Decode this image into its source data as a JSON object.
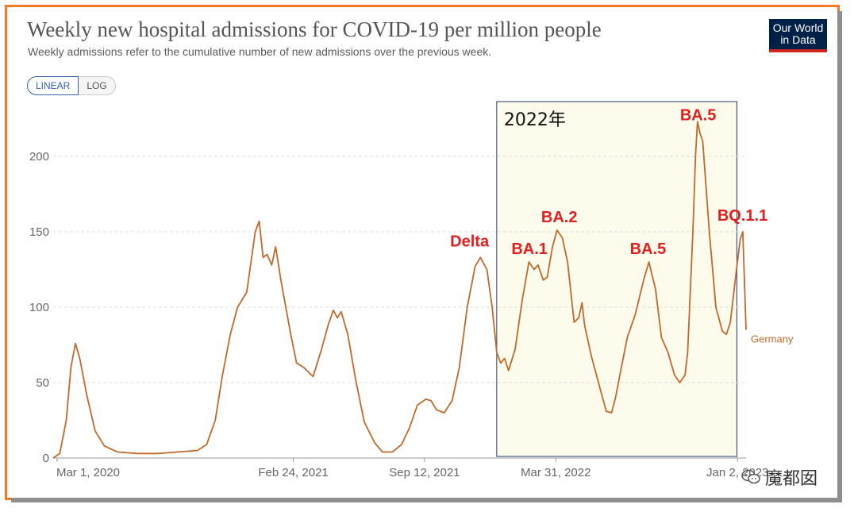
{
  "header": {
    "title": "Weekly new hospital admissions for COVID-19 per million people",
    "subtitle": "Weekly admissions refer to the cumulative number of new admissions over the previous week."
  },
  "logo": {
    "line1": "Our World",
    "line2": "in Data",
    "bg": "#002147",
    "accent": "#ce261e"
  },
  "scale_toggle": {
    "linear_label": "LINEAR",
    "log_label": "LOG",
    "selected": "LINEAR"
  },
  "watermark": {
    "text": "魔都囡",
    "icon": "wechat-icon"
  },
  "colors": {
    "frame": "#f07a28",
    "line": "#c0692a",
    "highlight_fill": "#fdfbec",
    "highlight_border": "#1f3c6e",
    "annotation": "#e0201f"
  },
  "chart_data": {
    "type": "line",
    "ylim": [
      0,
      230
    ],
    "y_ticks": [
      0,
      50,
      100,
      150,
      200
    ],
    "xlim": [
      "2020-02-24",
      "2023-01-15"
    ],
    "x_tick_labels": [
      "Mar 1, 2020",
      "Feb 24, 2021",
      "Sep 12, 2021",
      "Mar 31, 2022",
      "Jan 2, 2023"
    ],
    "x_tick_dates": [
      "2020-03-01",
      "2021-02-24",
      "2021-09-12",
      "2022-03-31",
      "2023-01-02"
    ],
    "grid": true,
    "series": [
      {
        "name": "Germany",
        "points": [
          [
            "2020-02-24",
            0
          ],
          [
            "2020-03-05",
            3
          ],
          [
            "2020-03-15",
            25
          ],
          [
            "2020-03-22",
            60
          ],
          [
            "2020-03-29",
            76
          ],
          [
            "2020-04-05",
            65
          ],
          [
            "2020-04-15",
            42
          ],
          [
            "2020-04-28",
            18
          ],
          [
            "2020-05-12",
            8
          ],
          [
            "2020-06-01",
            4
          ],
          [
            "2020-07-01",
            3
          ],
          [
            "2020-08-01",
            3
          ],
          [
            "2020-09-01",
            4
          ],
          [
            "2020-10-01",
            5
          ],
          [
            "2020-10-15",
            9
          ],
          [
            "2020-10-28",
            25
          ],
          [
            "2020-11-08",
            55
          ],
          [
            "2020-11-20",
            82
          ],
          [
            "2020-12-01",
            100
          ],
          [
            "2020-12-15",
            110
          ],
          [
            "2020-12-28",
            150
          ],
          [
            "2021-01-03",
            157
          ],
          [
            "2021-01-09",
            133
          ],
          [
            "2021-01-15",
            135
          ],
          [
            "2021-01-22",
            128
          ],
          [
            "2021-01-28",
            140
          ],
          [
            "2021-02-05",
            118
          ],
          [
            "2021-02-20",
            82
          ],
          [
            "2021-03-01",
            63
          ],
          [
            "2021-03-12",
            60
          ],
          [
            "2021-03-26",
            54
          ],
          [
            "2021-04-08",
            72
          ],
          [
            "2021-04-18",
            88
          ],
          [
            "2021-04-26",
            98
          ],
          [
            "2021-05-02",
            93
          ],
          [
            "2021-05-08",
            97
          ],
          [
            "2021-05-18",
            82
          ],
          [
            "2021-05-30",
            52
          ],
          [
            "2021-06-12",
            24
          ],
          [
            "2021-06-28",
            10
          ],
          [
            "2021-07-10",
            4
          ],
          [
            "2021-07-25",
            4
          ],
          [
            "2021-08-08",
            9
          ],
          [
            "2021-08-20",
            20
          ],
          [
            "2021-09-01",
            35
          ],
          [
            "2021-09-14",
            39
          ],
          [
            "2021-09-22",
            38
          ],
          [
            "2021-09-30",
            32
          ],
          [
            "2021-10-12",
            30
          ],
          [
            "2021-10-24",
            38
          ],
          [
            "2021-11-04",
            60
          ],
          [
            "2021-11-16",
            100
          ],
          [
            "2021-11-28",
            127
          ],
          [
            "2021-12-06",
            133
          ],
          [
            "2021-12-16",
            125
          ],
          [
            "2021-12-24",
            100
          ],
          [
            "2021-12-31",
            70
          ],
          [
            "2022-01-06",
            63
          ],
          [
            "2022-01-12",
            66
          ],
          [
            "2022-01-18",
            58
          ],
          [
            "2022-01-28",
            72
          ],
          [
            "2022-02-08",
            105
          ],
          [
            "2022-02-18",
            130
          ],
          [
            "2022-02-26",
            125
          ],
          [
            "2022-03-04",
            128
          ],
          [
            "2022-03-12",
            118
          ],
          [
            "2022-03-18",
            120
          ],
          [
            "2022-03-26",
            140
          ],
          [
            "2022-04-02",
            151
          ],
          [
            "2022-04-10",
            146
          ],
          [
            "2022-04-18",
            130
          ],
          [
            "2022-04-28",
            90
          ],
          [
            "2022-05-05",
            93
          ],
          [
            "2022-05-10",
            103
          ],
          [
            "2022-05-14",
            88
          ],
          [
            "2022-05-24",
            68
          ],
          [
            "2022-06-04",
            50
          ],
          [
            "2022-06-16",
            31
          ],
          [
            "2022-06-24",
            30
          ],
          [
            "2022-06-30",
            40
          ],
          [
            "2022-07-08",
            58
          ],
          [
            "2022-07-18",
            80
          ],
          [
            "2022-07-30",
            95
          ],
          [
            "2022-08-12",
            118
          ],
          [
            "2022-08-20",
            130
          ],
          [
            "2022-08-30",
            112
          ],
          [
            "2022-09-08",
            80
          ],
          [
            "2022-09-18",
            70
          ],
          [
            "2022-09-28",
            55
          ],
          [
            "2022-10-06",
            50
          ],
          [
            "2022-10-14",
            55
          ],
          [
            "2022-10-18",
            70
          ],
          [
            "2022-10-22",
            110
          ],
          [
            "2022-10-26",
            150
          ],
          [
            "2022-10-30",
            200
          ],
          [
            "2022-11-02",
            223
          ],
          [
            "2022-11-06",
            215
          ],
          [
            "2022-11-10",
            210
          ],
          [
            "2022-11-20",
            150
          ],
          [
            "2022-11-30",
            100
          ],
          [
            "2022-12-10",
            84
          ],
          [
            "2022-12-16",
            82
          ],
          [
            "2022-12-22",
            90
          ],
          [
            "2022-12-30",
            120
          ],
          [
            "2023-01-06",
            145
          ],
          [
            "2023-01-10",
            150
          ],
          [
            "2023-01-13",
            112
          ],
          [
            "2023-01-15",
            85
          ]
        ]
      }
    ],
    "series_label": "Germany",
    "highlight": {
      "label": "2022年",
      "start": "2021-12-31",
      "end": "2023-01-01"
    },
    "annotations": [
      {
        "text": "Delta",
        "date": "2021-12-06",
        "value": 133
      },
      {
        "text": "BA.1",
        "date": "2022-02-18",
        "value": 130
      },
      {
        "text": "BA.2",
        "date": "2022-04-02",
        "value": 151
      },
      {
        "text": "BA.5",
        "date": "2022-08-20",
        "value": 130
      },
      {
        "text": "BA.5",
        "date": "2022-11-02",
        "value": 223
      },
      {
        "text": "BQ.1.1",
        "date": "2023-01-10",
        "value": 150
      }
    ]
  }
}
